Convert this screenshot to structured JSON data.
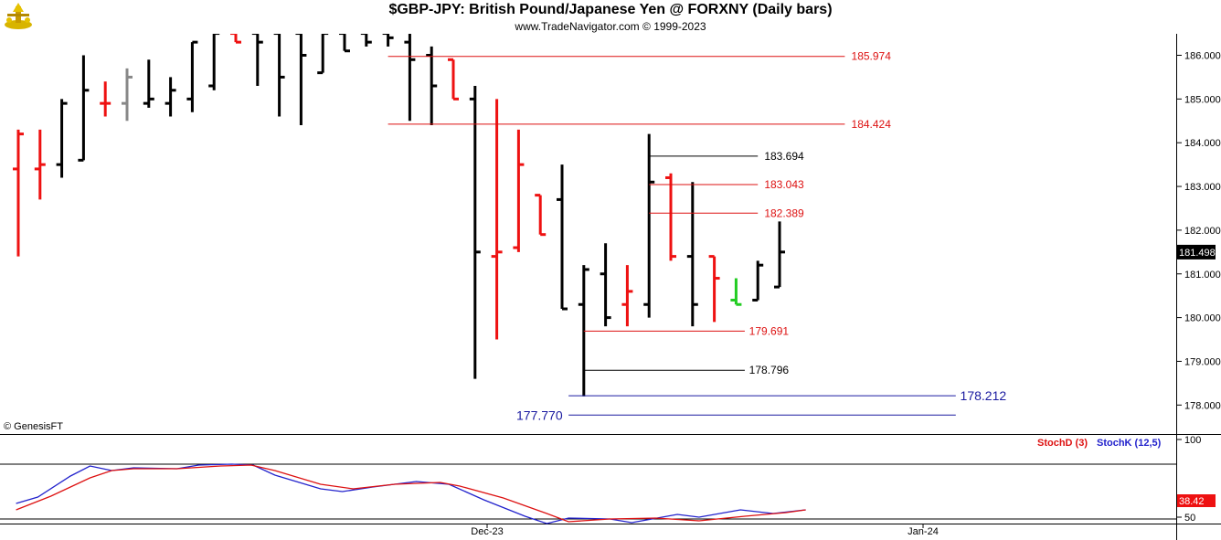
{
  "header": {
    "title": "$GBP-JPY:  British Pound/Japanese Yen @ FORXNY  (Daily bars)",
    "subtitle": "www.TradeNavigator.com © 1999-2023",
    "credit": "© GenesisFT"
  },
  "colors": {
    "up": "#000000",
    "down": "#ee1111",
    "neutral_gray": "#888888",
    "inside": "#22cc22",
    "level_red": "#dd1111",
    "level_black": "#000000",
    "level_blue": "#1a1aa0",
    "stoch_d": "#dd1111",
    "stoch_k": "#2222cc"
  },
  "chart_data": {
    "type": "ohlc",
    "ylim": [
      177.5,
      186.5
    ],
    "y_ticks": [
      "186.000",
      "185.000",
      "184.000",
      "183.000",
      "182.000",
      "181.000",
      "180.000",
      "179.000",
      "178.000"
    ],
    "x_labels": [
      "Dec-23",
      "Jan-24"
    ],
    "last_price": "181.498",
    "bars": [
      {
        "o": 183.4,
        "h": 184.3,
        "l": 181.4,
        "c": 184.2,
        "color": "down"
      },
      {
        "o": 183.4,
        "h": 184.3,
        "l": 182.7,
        "c": 183.5,
        "color": "down"
      },
      {
        "o": 183.5,
        "h": 185.0,
        "l": 183.2,
        "c": 184.9,
        "color": "up"
      },
      {
        "o": 183.6,
        "h": 186.0,
        "l": 183.6,
        "c": 185.2,
        "color": "up"
      },
      {
        "o": 184.9,
        "h": 185.4,
        "l": 184.6,
        "c": 184.9,
        "color": "down"
      },
      {
        "o": 184.9,
        "h": 185.7,
        "l": 184.5,
        "c": 185.5,
        "color": "neutral"
      },
      {
        "o": 184.9,
        "h": 185.9,
        "l": 184.8,
        "c": 185.0,
        "color": "up"
      },
      {
        "o": 184.9,
        "h": 185.5,
        "l": 184.6,
        "c": 185.2,
        "color": "up"
      },
      {
        "o": 185.0,
        "h": 186.3,
        "l": 184.7,
        "c": 186.3,
        "color": "up"
      },
      {
        "o": 185.3,
        "h": 186.5,
        "l": 185.2,
        "c": 186.5,
        "color": "up"
      },
      {
        "o": 186.5,
        "h": 186.5,
        "l": 186.3,
        "c": 186.3,
        "color": "down"
      },
      {
        "o": 186.5,
        "h": 186.5,
        "l": 185.3,
        "c": 186.3,
        "color": "up"
      },
      {
        "o": 186.5,
        "h": 186.5,
        "l": 184.6,
        "c": 185.5,
        "color": "up"
      },
      {
        "o": 186.5,
        "h": 186.5,
        "l": 184.4,
        "c": 186.0,
        "color": "up"
      },
      {
        "o": 185.6,
        "h": 186.5,
        "l": 185.6,
        "c": 186.5,
        "color": "up"
      },
      {
        "o": 186.5,
        "h": 186.5,
        "l": 186.1,
        "c": 186.1,
        "color": "up"
      },
      {
        "o": 186.5,
        "h": 186.5,
        "l": 186.2,
        "c": 186.3,
        "color": "up"
      },
      {
        "o": 186.5,
        "h": 186.5,
        "l": 186.2,
        "c": 186.4,
        "color": "up"
      },
      {
        "o": 186.3,
        "h": 186.5,
        "l": 184.5,
        "c": 185.9,
        "color": "up"
      },
      {
        "o": 186.0,
        "h": 186.2,
        "l": 184.4,
        "c": 185.3,
        "color": "up"
      },
      {
        "o": 185.9,
        "h": 185.9,
        "l": 185.0,
        "c": 185.0,
        "color": "down"
      },
      {
        "o": 185.0,
        "h": 185.3,
        "l": 178.6,
        "c": 181.5,
        "color": "up"
      },
      {
        "o": 181.4,
        "h": 185.0,
        "l": 179.5,
        "c": 181.5,
        "color": "down"
      },
      {
        "o": 181.6,
        "h": 184.3,
        "l": 181.5,
        "c": 183.5,
        "color": "down"
      },
      {
        "o": 182.8,
        "h": 182.8,
        "l": 181.9,
        "c": 181.9,
        "color": "down"
      },
      {
        "o": 182.7,
        "h": 183.5,
        "l": 180.2,
        "c": 180.2,
        "color": "up"
      },
      {
        "o": 180.3,
        "h": 181.2,
        "l": 178.2,
        "c": 181.1,
        "color": "up"
      },
      {
        "o": 181.0,
        "h": 181.7,
        "l": 179.8,
        "c": 180.0,
        "color": "up"
      },
      {
        "o": 180.3,
        "h": 181.2,
        "l": 179.8,
        "c": 180.6,
        "color": "down"
      },
      {
        "o": 180.3,
        "h": 184.2,
        "l": 180.0,
        "c": 183.1,
        "color": "up"
      },
      {
        "o": 183.2,
        "h": 183.3,
        "l": 181.3,
        "c": 181.4,
        "color": "down"
      },
      {
        "o": 181.4,
        "h": 183.1,
        "l": 179.8,
        "c": 180.3,
        "color": "up"
      },
      {
        "o": 181.4,
        "h": 181.4,
        "l": 179.9,
        "c": 180.9,
        "color": "down"
      },
      {
        "o": 180.4,
        "h": 180.9,
        "l": 180.3,
        "c": 180.3,
        "color": "inside"
      },
      {
        "o": 180.4,
        "h": 181.3,
        "l": 180.4,
        "c": 181.2,
        "color": "up"
      },
      {
        "o": 180.7,
        "h": 182.2,
        "l": 180.7,
        "c": 181.5,
        "color": "up"
      }
    ],
    "levels": [
      {
        "value": 185.974,
        "label": "185.974",
        "color": "level_red",
        "from_bar": 17.0,
        "to_bar": 38.0,
        "label_bar": 38.3,
        "size": "small"
      },
      {
        "value": 184.424,
        "label": "184.424",
        "color": "level_red",
        "from_bar": 17.0,
        "to_bar": 38.0,
        "label_bar": 38.3,
        "size": "small"
      },
      {
        "value": 183.694,
        "label": "183.694",
        "color": "level_black",
        "from_bar": 29.0,
        "to_bar": 34.0,
        "label_bar": 34.3,
        "size": "small"
      },
      {
        "value": 183.043,
        "label": "183.043",
        "color": "level_red",
        "from_bar": 29.0,
        "to_bar": 34.0,
        "label_bar": 34.3,
        "size": "small"
      },
      {
        "value": 182.389,
        "label": "182.389",
        "color": "level_red",
        "from_bar": 29.0,
        "to_bar": 34.0,
        "label_bar": 34.3,
        "size": "small"
      },
      {
        "value": 179.691,
        "label": "179.691",
        "color": "level_red",
        "from_bar": 26.0,
        "to_bar": 33.4,
        "label_bar": 33.6,
        "size": "small"
      },
      {
        "value": 178.796,
        "label": "178.796",
        "color": "level_black",
        "from_bar": 26.0,
        "to_bar": 33.4,
        "label_bar": 33.6,
        "size": "small"
      },
      {
        "value": 178.212,
        "label": "178.212",
        "color": "level_blue",
        "from_bar": 25.3,
        "to_bar": 43.1,
        "label_bar": 43.3,
        "size": "large"
      },
      {
        "value": 177.77,
        "label": "177.770",
        "color": "level_blue",
        "from_bar": 25.3,
        "to_bar": 43.1,
        "label_bar": 22.9,
        "label_side": "left",
        "size": "large"
      }
    ],
    "indicator": {
      "legend": [
        "StochD (3)",
        "StochK (12,5)"
      ],
      "ylim": [
        0,
        100
      ],
      "y_ticks": [
        "100",
        "50"
      ],
      "ref_lines": [
        80,
        20
      ],
      "last_value": "38.42",
      "stochD": [
        {
          "x": -0.1,
          "y": 30
        },
        {
          "x": 1.5,
          "y": 45
        },
        {
          "x": 3.3,
          "y": 65
        },
        {
          "x": 4.3,
          "y": 73
        },
        {
          "x": 5.3,
          "y": 75
        },
        {
          "x": 7.3,
          "y": 75
        },
        {
          "x": 9.3,
          "y": 78
        },
        {
          "x": 10.7,
          "y": 79
        },
        {
          "x": 11.8,
          "y": 73
        },
        {
          "x": 13.9,
          "y": 58
        },
        {
          "x": 15.4,
          "y": 53
        },
        {
          "x": 17.3,
          "y": 58
        },
        {
          "x": 19.4,
          "y": 60
        },
        {
          "x": 20.3,
          "y": 56
        },
        {
          "x": 22.3,
          "y": 43
        },
        {
          "x": 24.3,
          "y": 26
        },
        {
          "x": 25.3,
          "y": 17
        },
        {
          "x": 27.2,
          "y": 20
        },
        {
          "x": 29.3,
          "y": 21
        },
        {
          "x": 31.3,
          "y": 18
        },
        {
          "x": 33.4,
          "y": 23
        },
        {
          "x": 35.3,
          "y": 27
        },
        {
          "x": 36.2,
          "y": 30
        }
      ],
      "stochK": [
        {
          "x": -0.1,
          "y": 37
        },
        {
          "x": 0.9,
          "y": 44
        },
        {
          "x": 2.4,
          "y": 67
        },
        {
          "x": 3.3,
          "y": 78
        },
        {
          "x": 4.3,
          "y": 73
        },
        {
          "x": 5.3,
          "y": 76
        },
        {
          "x": 7.3,
          "y": 75
        },
        {
          "x": 8.3,
          "y": 79
        },
        {
          "x": 9.8,
          "y": 80
        },
        {
          "x": 10.8,
          "y": 79
        },
        {
          "x": 11.8,
          "y": 68
        },
        {
          "x": 13.9,
          "y": 53
        },
        {
          "x": 14.9,
          "y": 50
        },
        {
          "x": 16.3,
          "y": 55
        },
        {
          "x": 18.3,
          "y": 61
        },
        {
          "x": 19.8,
          "y": 58
        },
        {
          "x": 21.4,
          "y": 41
        },
        {
          "x": 23.3,
          "y": 23
        },
        {
          "x": 24.3,
          "y": 15
        },
        {
          "x": 25.3,
          "y": 21
        },
        {
          "x": 27.2,
          "y": 20
        },
        {
          "x": 28.2,
          "y": 16
        },
        {
          "x": 30.3,
          "y": 25
        },
        {
          "x": 31.3,
          "y": 22
        },
        {
          "x": 33.2,
          "y": 30
        },
        {
          "x": 34.7,
          "y": 26
        },
        {
          "x": 36.2,
          "y": 30
        }
      ]
    }
  }
}
